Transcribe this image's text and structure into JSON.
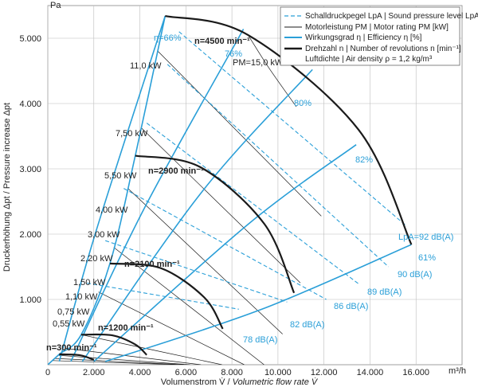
{
  "chart_data": {
    "type": "line",
    "xlabel_plain": "Volumenstrom V̇ / ",
    "xlabel_italic": "Volumetric flow rate V̇",
    "x_unit": "m³/h",
    "ylabel": "Druckerhöhung Δpt / Pressure increase Δpt",
    "y_unit": "Pa",
    "xlim": [
      0,
      18000
    ],
    "ylim": [
      0,
      5500
    ],
    "x_ticks": [
      0,
      2000,
      4000,
      6000,
      8000,
      10000,
      12000,
      14000,
      16000
    ],
    "x_tick_labels": [
      "0",
      "2.000",
      "4.000",
      "6.000",
      "8.000",
      "10.000",
      "12.000",
      "14.000",
      "16.000"
    ],
    "y_ticks": [
      1000,
      2000,
      3000,
      4000,
      5000
    ],
    "y_tick_labels": [
      "1.000",
      "2.000",
      "3.000",
      "4.000",
      "5.000"
    ],
    "legend": {
      "position": "top-right",
      "entries": [
        {
          "style": "dashed-cyan",
          "label": "Schalldruckpegel LpA | Sound pressure level LpA [dB(A)]"
        },
        {
          "style": "thin-black",
          "label": "Motorleistung PM | Motor rating PM [kW]"
        },
        {
          "style": "cyan",
          "label": "Wirkungsgrad η | Efficiency η [%]"
        },
        {
          "style": "bold-black",
          "label": "Drehzahl n | Number of revolutions n [min⁻¹]"
        },
        {
          "style": "none",
          "label": "Luftdichte | Air density ρ = 1,2 kg/m³"
        }
      ]
    },
    "colors": {
      "cyan": "#2a9fd8",
      "black": "#1a1a1a"
    },
    "speed_curves": [
      {
        "label": "n=300 min⁻¹",
        "points": [
          [
            500,
            160
          ],
          [
            1400,
            145
          ],
          [
            2000,
            75
          ]
        ]
      },
      {
        "label": "n=1200 min⁻¹",
        "points": [
          [
            1450,
            460
          ],
          [
            2800,
            450
          ],
          [
            3800,
            310
          ],
          [
            4300,
            150
          ]
        ]
      },
      {
        "label": "n=2100 min⁻¹",
        "points": [
          [
            2700,
            1550
          ],
          [
            4900,
            1480
          ],
          [
            6800,
            1030
          ],
          [
            7600,
            550
          ]
        ]
      },
      {
        "label": "n=2900 min⁻¹",
        "points": [
          [
            3800,
            3200
          ],
          [
            6600,
            3030
          ],
          [
            9400,
            2160
          ],
          [
            10700,
            1100
          ]
        ]
      },
      {
        "label": "n=4500 min⁻¹",
        "points": [
          [
            5100,
            5340
          ],
          [
            8700,
            5050
          ],
          [
            13500,
            3600
          ],
          [
            15800,
            1840
          ]
        ]
      }
    ],
    "efficiency_curves": [
      {
        "label": "η=66%",
        "points": [
          [
            500,
            50
          ],
          [
            2100,
            2050
          ],
          [
            5100,
            5340
          ]
        ]
      },
      {
        "label": "76%",
        "points": [
          [
            1000,
            50
          ],
          [
            4200,
            2400
          ],
          [
            8500,
            5140
          ]
        ]
      },
      {
        "label": "80%",
        "points": [
          [
            1500,
            50
          ],
          [
            6700,
            2650
          ],
          [
            11500,
            4520
          ]
        ]
      },
      {
        "label": "82%",
        "points": [
          [
            2000,
            50
          ],
          [
            8700,
            2150
          ],
          [
            13400,
            3370
          ]
        ]
      },
      {
        "label": "61%",
        "points": [
          [
            2500,
            50
          ],
          [
            9300,
            850
          ],
          [
            15800,
            1840
          ]
        ]
      }
    ],
    "outer_envelope": [
      [
        0,
        0
      ],
      [
        500,
        160
      ],
      [
        1450,
        460
      ],
      [
        2700,
        1550
      ],
      [
        3800,
        3200
      ],
      [
        5100,
        5340
      ]
    ],
    "sound_level_labels": [
      "78 dB(A)",
      "82 dB(A)",
      "86 dB(A)",
      "89 dB(A)",
      "90 dB(A)",
      "LpA=92 dB(A)"
    ],
    "motor_rating_labels": [
      "0,55 kW",
      "0,75 kW",
      "1,10 kW",
      "1,50 kW",
      "2,20 kW",
      "3,00 kW",
      "4,00 kW",
      "5,50 kW",
      "7,50 kW",
      "11,0 kW",
      "PM=15,0 kW"
    ]
  }
}
